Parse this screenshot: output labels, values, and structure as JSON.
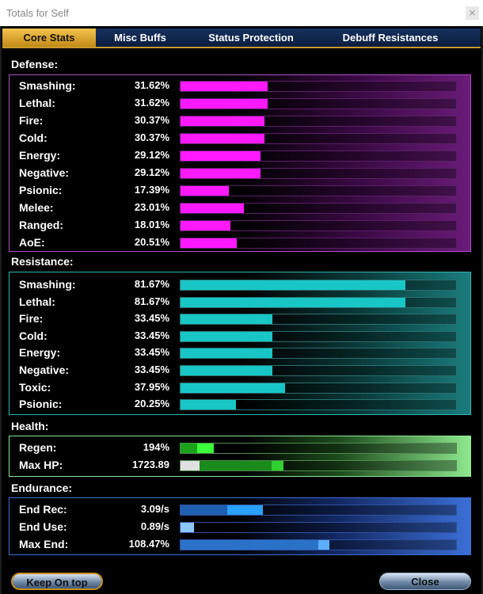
{
  "window": {
    "title": "Totals for Self",
    "close_glyph": "×"
  },
  "tabs": [
    {
      "label": "Core Stats",
      "active": true
    },
    {
      "label": "Misc Buffs",
      "active": false
    },
    {
      "label": "Status Protection",
      "active": false
    },
    {
      "label": "Debuff Resistances",
      "active": false
    }
  ],
  "defense": {
    "title": "Defense:",
    "color": "#ff19ff",
    "rows": [
      {
        "label": "Smashing:",
        "value": "31.62%",
        "fraction": 0.3162
      },
      {
        "label": "Lethal:",
        "value": "31.62%",
        "fraction": 0.3162
      },
      {
        "label": "Fire:",
        "value": "30.37%",
        "fraction": 0.3037
      },
      {
        "label": "Cold:",
        "value": "30.37%",
        "fraction": 0.3037
      },
      {
        "label": "Energy:",
        "value": "29.12%",
        "fraction": 0.2912
      },
      {
        "label": "Negative:",
        "value": "29.12%",
        "fraction": 0.2912
      },
      {
        "label": "Psionic:",
        "value": "17.39%",
        "fraction": 0.1739
      },
      {
        "label": "Melee:",
        "value": "23.01%",
        "fraction": 0.2301
      },
      {
        "label": "Ranged:",
        "value": "18.01%",
        "fraction": 0.1801
      },
      {
        "label": "AoE:",
        "value": "20.51%",
        "fraction": 0.2051
      }
    ]
  },
  "resistance": {
    "title": "Resistance:",
    "color": "#19c6c6",
    "rows": [
      {
        "label": "Smashing:",
        "value": "81.67%",
        "fraction": 0.8167
      },
      {
        "label": "Lethal:",
        "value": "81.67%",
        "fraction": 0.8167
      },
      {
        "label": "Fire:",
        "value": "33.45%",
        "fraction": 0.3345
      },
      {
        "label": "Cold:",
        "value": "33.45%",
        "fraction": 0.3345
      },
      {
        "label": "Energy:",
        "value": "33.45%",
        "fraction": 0.3345
      },
      {
        "label": "Negative:",
        "value": "33.45%",
        "fraction": 0.3345
      },
      {
        "label": "Toxic:",
        "value": "37.95%",
        "fraction": 0.3795
      },
      {
        "label": "Psionic:",
        "value": "20.25%",
        "fraction": 0.2025
      }
    ]
  },
  "health": {
    "title": "Health:",
    "color": "#8ee88e",
    "rows": [
      {
        "label": "Regen:",
        "value": "194%"
      },
      {
        "label": "Max HP:",
        "value": "1723.89"
      }
    ]
  },
  "endurance": {
    "title": "Endurance:",
    "color": "#3b6fd6",
    "rows": [
      {
        "label": "End Rec:",
        "value": "3.09/s"
      },
      {
        "label": "End Use:",
        "value": "0.89/s"
      },
      {
        "label": "Max End:",
        "value": "108.47%"
      }
    ]
  },
  "buttons": {
    "keep_on_top": "Keep On top",
    "close": "Close"
  }
}
